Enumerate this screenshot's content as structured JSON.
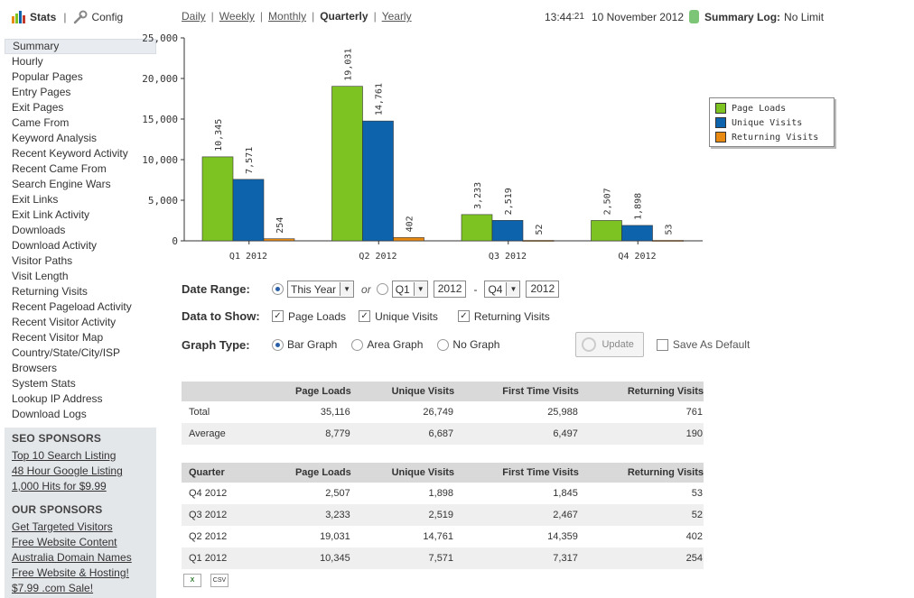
{
  "topnav": {
    "stats_label": "Stats",
    "separator": "|",
    "config_label": "Config"
  },
  "periods": {
    "items": [
      {
        "label": "Daily",
        "current": false
      },
      {
        "label": "Weekly",
        "current": false
      },
      {
        "label": "Monthly",
        "current": false
      },
      {
        "label": "Quarterly",
        "current": true
      },
      {
        "label": "Yearly",
        "current": false
      }
    ],
    "separator": "|"
  },
  "clock": {
    "time": "13:44",
    "seconds": ":21",
    "date": "10 November 2012",
    "log_label": "Summary Log:",
    "log_value": "No Limit"
  },
  "sidebar": {
    "items": [
      "Summary",
      "Hourly",
      "Popular Pages",
      "Entry Pages",
      "Exit Pages",
      "Came From",
      "Keyword Analysis",
      "Recent Keyword Activity",
      "Recent Came From",
      "Search Engine Wars",
      "Exit Links",
      "Exit Link Activity",
      "Downloads",
      "Download Activity",
      "Visitor Paths",
      "Visit Length",
      "Returning Visits",
      "Recent Pageload Activity",
      "Recent Visitor Activity",
      "Recent Visitor Map",
      "Country/State/City/ISP",
      "Browsers",
      "System Stats",
      "Lookup IP Address",
      "Download Logs"
    ],
    "active": "Summary"
  },
  "seo_sponsors": {
    "title": "SEO SPONSORS",
    "links": [
      "Top 10 Search Listing",
      "48 Hour Google Listing",
      "1,000 Hits for $9.99"
    ]
  },
  "our_sponsors": {
    "title": "OUR SPONSORS",
    "links": [
      "Get Targeted Visitors",
      "Free Website Content",
      "Australia Domain Names",
      "Free Website & Hosting!",
      "$7.99 .com Sale!"
    ]
  },
  "chart_data": {
    "type": "bar",
    "categories": [
      "Q1 2012",
      "Q2 2012",
      "Q3 2012",
      "Q4 2012"
    ],
    "series": [
      {
        "name": "Page Loads",
        "color": "#7dc322",
        "values": [
          10345,
          19031,
          3233,
          2507
        ],
        "labels": [
          "10,345",
          "19,031",
          "3,233",
          "2,507"
        ]
      },
      {
        "name": "Unique Visits",
        "color": "#0e63ad",
        "values": [
          7571,
          14761,
          2519,
          1898
        ],
        "labels": [
          "7,571",
          "14,761",
          "2,519",
          "1,898"
        ]
      },
      {
        "name": "Returning Visits",
        "color": "#e88a12",
        "values": [
          254,
          402,
          52,
          53
        ],
        "labels": [
          "254",
          "402",
          "52",
          "53"
        ]
      }
    ],
    "yticks": [
      0,
      5000,
      10000,
      15000,
      20000,
      25000
    ],
    "ytick_labels": [
      "0",
      "5,000",
      "10,000",
      "15,000",
      "20,000",
      "25,000"
    ],
    "ylim": [
      0,
      25000
    ],
    "grid": false,
    "legend": "right"
  },
  "form": {
    "date_range_label": "Date Range:",
    "range_select": "This Year",
    "or_label": "or",
    "from_quarter": "Q1",
    "from_year": "2012",
    "dash": "-",
    "to_quarter": "Q4",
    "to_year": "2012",
    "data_label": "Data to Show:",
    "data_options": [
      "Page Loads",
      "Unique Visits",
      "Returning Visits"
    ],
    "graph_label": "Graph Type:",
    "graph_options": [
      "Bar Graph",
      "Area Graph",
      "No Graph"
    ],
    "graph_selected": "Bar Graph",
    "update_label": "Update",
    "save_default_label": "Save As Default"
  },
  "summary_table": {
    "headers": [
      "",
      "Page Loads",
      "Unique Visits",
      "First Time Visits",
      "Returning Visits"
    ],
    "rows": [
      [
        "Total",
        "35,116",
        "26,749",
        "25,988",
        "761"
      ],
      [
        "Average",
        "8,779",
        "6,687",
        "6,497",
        "190"
      ]
    ]
  },
  "quarter_table": {
    "headers": [
      "Quarter",
      "Page Loads",
      "Unique Visits",
      "First Time Visits",
      "Returning Visits"
    ],
    "rows": [
      [
        "Q4 2012",
        "2,507",
        "1,898",
        "1,845",
        "53"
      ],
      [
        "Q3 2012",
        "3,233",
        "2,519",
        "2,467",
        "52"
      ],
      [
        "Q2 2012",
        "19,031",
        "14,761",
        "14,359",
        "402"
      ],
      [
        "Q1 2012",
        "10,345",
        "7,571",
        "7,317",
        "254"
      ]
    ]
  },
  "exports": {
    "excel_label": "X",
    "csv_label": "CSV"
  },
  "colors": {
    "page_loads": "#7dc322",
    "unique_visits": "#0e63ad",
    "returning_visits": "#e88a12",
    "status_green": "#7cc576"
  }
}
